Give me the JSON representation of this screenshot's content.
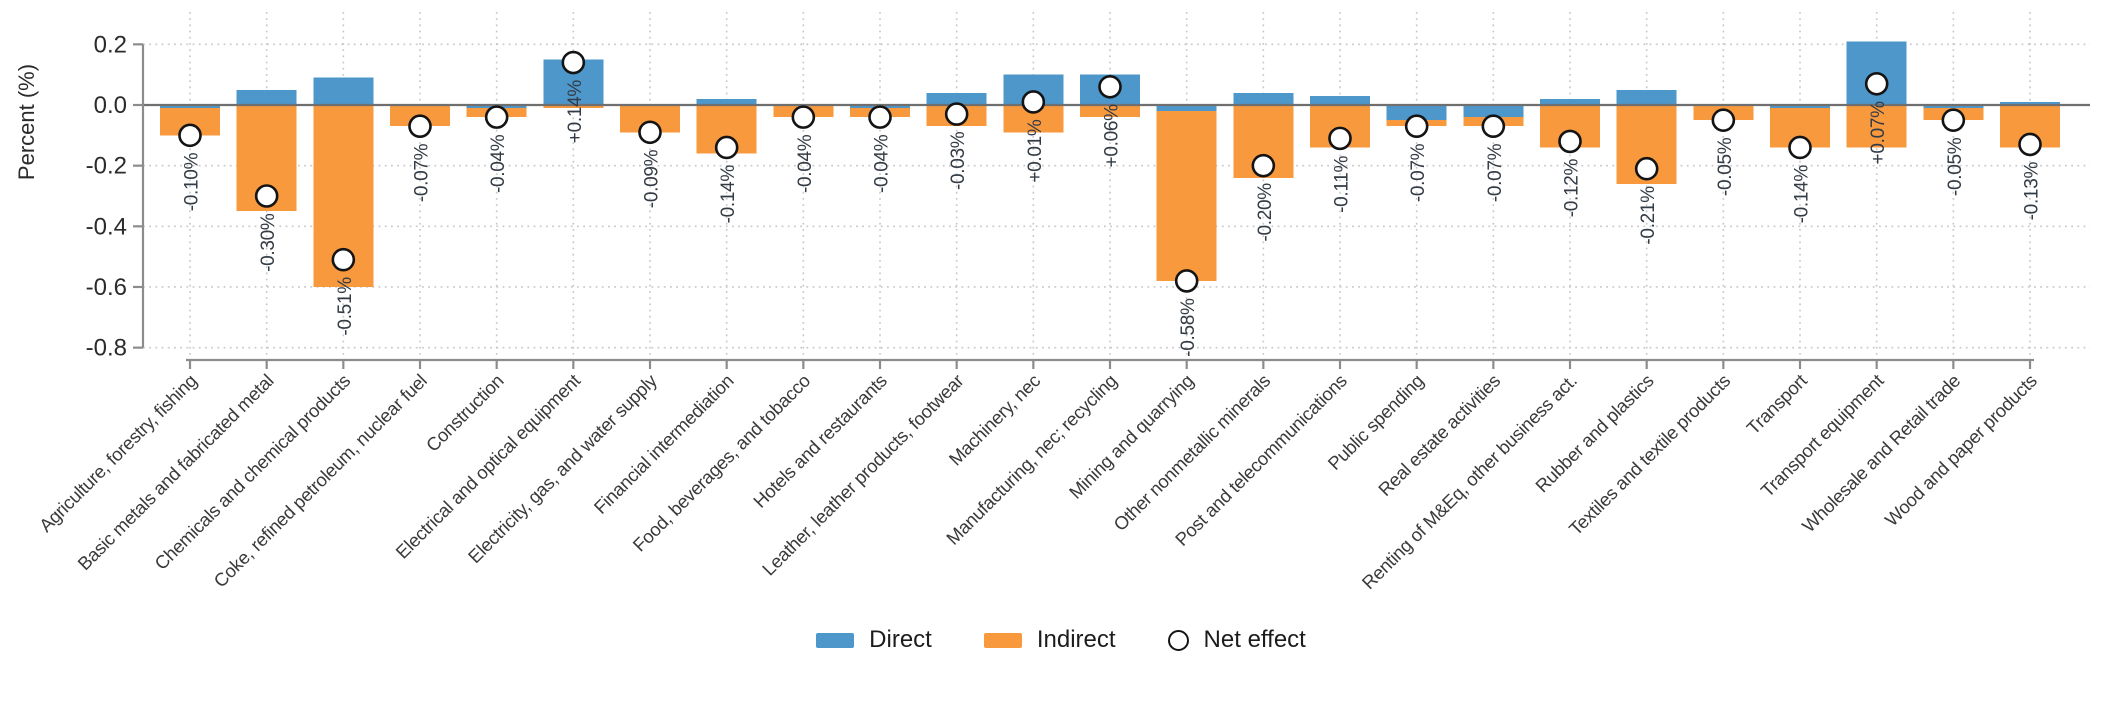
{
  "chart_data": {
    "type": "bar",
    "subtype": "diverging stacked bars with net-effect circle markers",
    "title": "",
    "xlabel": "",
    "ylabel": "Percent (%)",
    "ylim": [
      -0.84,
      0.31
    ],
    "grid": "dotted horizontal and vertical gridlines",
    "legend_position": "bottom center",
    "y_ticks": [
      {
        "value": 0.2,
        "label": "0.2"
      },
      {
        "value": 0.0,
        "label": "0.0"
      },
      {
        "value": -0.2,
        "label": "-0.2"
      },
      {
        "value": -0.4,
        "label": "-0.4"
      },
      {
        "value": -0.6,
        "label": "-0.6"
      },
      {
        "value": -0.8,
        "label": "-0.8"
      }
    ],
    "categories": [
      "Agriculture, forestry, fishing",
      "Basic metals and fabricated metal",
      "Chemicals and chemical products",
      "Coke, refined petroleum, nuclear fuel",
      "Construction",
      "Electrical and optical equipment",
      "Electricity, gas, and water supply",
      "Financial intermediation",
      "Food, beverages, and tobacco",
      "Hotels and restaurants",
      "Leather, leather products, footwear",
      "Machinery, nec",
      "Manufacturing, nec; recycling",
      "Mining and quarrying",
      "Other nonmetallic minerals",
      "Post and telecommunications",
      "Public spending",
      "Real estate activities",
      "Renting of M&Eq, other business act.",
      "Rubber and plastics",
      "Textiles and textile products",
      "Transport",
      "Transport equipment",
      "Wholesale and Retail trade",
      "Wood and paper products"
    ],
    "series": [
      {
        "name": "Direct",
        "color": "#4D97CB",
        "values": [
          -0.01,
          0.05,
          0.09,
          0.0,
          -0.01,
          0.15,
          0.0,
          0.02,
          0.0,
          -0.01,
          0.04,
          0.1,
          0.1,
          -0.02,
          0.04,
          0.03,
          -0.05,
          -0.04,
          0.02,
          0.05,
          0.0,
          -0.01,
          0.21,
          -0.01,
          0.01
        ]
      },
      {
        "name": "Indirect",
        "color": "#F8993E",
        "values": [
          -0.09,
          -0.35,
          -0.6,
          -0.07,
          -0.03,
          -0.01,
          -0.09,
          -0.16,
          -0.04,
          -0.03,
          -0.07,
          -0.09,
          -0.04,
          -0.56,
          -0.24,
          -0.14,
          -0.02,
          -0.03,
          -0.14,
          -0.26,
          -0.05,
          -0.13,
          -0.14,
          -0.04,
          -0.14
        ]
      }
    ],
    "net": {
      "name": "Net effect",
      "marker": "open-circle",
      "values": [
        -0.1,
        -0.3,
        -0.51,
        -0.07,
        -0.04,
        0.14,
        -0.09,
        -0.14,
        -0.04,
        -0.04,
        -0.03,
        0.01,
        0.06,
        -0.58,
        -0.2,
        -0.11,
        -0.07,
        -0.07,
        -0.12,
        -0.21,
        -0.05,
        -0.14,
        0.07,
        -0.05,
        -0.13
      ],
      "labels": [
        "-0.10%",
        "-0.30%",
        "-0.51%",
        "-0.07%",
        "-0.04%",
        "+0.14%",
        "-0.09%",
        "-0.14%",
        "-0.04%",
        "-0.04%",
        "-0.03%",
        "+0.01%",
        "+0.06%",
        "-0.58%",
        "-0.20%",
        "-0.11%",
        "-0.07%",
        "-0.07%",
        "-0.12%",
        "-0.21%",
        "-0.05%",
        "-0.14%",
        "+0.07%",
        "-0.05%",
        "-0.13%"
      ]
    }
  },
  "legend": {
    "direct": "Direct",
    "indirect": "Indirect",
    "net": "Net effect"
  },
  "colors": {
    "direct": "#4D97CB",
    "indirect": "#F8993E",
    "net_marker_fill": "#ffffff",
    "net_marker_stroke": "#141414",
    "zero_line": "#6f6f6f",
    "spine": "#8c8c8c",
    "gridline": "#c8c8c8",
    "tick_text": "#2b2b2b",
    "category_text": "#3a3a3a",
    "net_label_text": "#333b45",
    "background": "#ffffff"
  }
}
